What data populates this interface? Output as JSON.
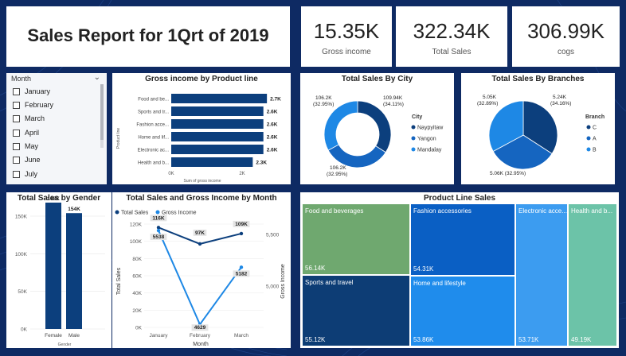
{
  "report": {
    "title": "Sales Report for 1Qrt of 2019"
  },
  "kpis": [
    {
      "value": "15.35K",
      "label": "Gross income"
    },
    {
      "value": "322.34K",
      "label": "Total Sales"
    },
    {
      "value": "306.99K",
      "label": "cogs"
    }
  ],
  "slicer": {
    "title": "Month",
    "items": [
      "January",
      "February",
      "March",
      "April",
      "May",
      "June",
      "July"
    ]
  },
  "gross_by_product": {
    "title": "Gross income by Product line",
    "ylabel": "Product line",
    "xlabel": "Sum of gross income",
    "ticks": [
      "0K",
      "2K"
    ],
    "chart_data": {
      "type": "bar",
      "categories": [
        "Food and be...",
        "Sports and tr...",
        "Fashion acce...",
        "Home and lif...",
        "Electronic ac...",
        "Health and b..."
      ],
      "values": [
        2.7,
        2.6,
        2.6,
        2.6,
        2.6,
        2.3
      ],
      "labels": [
        "2.7K",
        "2.6K",
        "2.6K",
        "2.6K",
        "2.6K",
        "2.3K"
      ],
      "xlim": [
        0,
        2.9
      ]
    }
  },
  "sales_by_city": {
    "title": "Total Sales By City",
    "legend_title": "City",
    "chart_data": {
      "type": "pie",
      "style": "donut",
      "categories": [
        "Naypyitaw",
        "Yangon",
        "Mandalay"
      ],
      "values": [
        109.94,
        106.2,
        106.2
      ],
      "labels": [
        "109.94K\n(34.11%)",
        "106.2K\n(32.95%)",
        "106.2K\n(32.95%)"
      ],
      "colors": [
        "#0c3f7d",
        "#1565c0",
        "#1e88e5"
      ]
    }
  },
  "sales_by_branch": {
    "title": "Total Sales By Branches",
    "legend_title": "Branch",
    "chart_data": {
      "type": "pie",
      "categories": [
        "C",
        "A",
        "B"
      ],
      "values": [
        5.24,
        5.06,
        5.05
      ],
      "labels": [
        "5.24K\n(34.16%)",
        "5.06K (32.95%)",
        "5.05K\n(32.89%)"
      ],
      "colors": [
        "#0c3f7d",
        "#1565c0",
        "#1e88e5"
      ]
    }
  },
  "sales_by_gender": {
    "title": "Total Sales by Gender",
    "xlabel": "Gender",
    "ticks": [
      "0K",
      "50K",
      "100K",
      "150K"
    ],
    "chart_data": {
      "type": "bar",
      "categories": [
        "Female",
        "Male"
      ],
      "values": [
        168,
        154
      ],
      "labels": [
        "168K",
        "154K"
      ],
      "ylim": [
        0,
        180
      ]
    }
  },
  "sales_gross_by_month": {
    "title": "Total Sales and Gross Income by Month",
    "legend": [
      "Total Sales",
      "Gross Income"
    ],
    "xlabel": "Month",
    "ylabel_left": "Total Sales",
    "ylabel_right": "Gross Income",
    "ticks_left": [
      "0K",
      "20K",
      "40K",
      "60K",
      "80K",
      "100K",
      "120K"
    ],
    "ticks_right": [
      "5,000",
      "5,500"
    ],
    "chart_data": {
      "type": "line",
      "categories": [
        "January",
        "February",
        "March"
      ],
      "series": [
        {
          "name": "Total Sales",
          "values": [
            116,
            97,
            109
          ],
          "labels": [
            "116K",
            "97K",
            "109K"
          ],
          "axis": "left"
        },
        {
          "name": "Gross Income",
          "values": [
            5538,
            4629,
            5182
          ],
          "labels": [
            "5538",
            "4629",
            "5182"
          ],
          "axis": "right"
        }
      ],
      "ylim_left": [
        0,
        120
      ],
      "ylim_right": [
        4600,
        5600
      ]
    }
  },
  "product_line_sales": {
    "title": "Product Line Sales",
    "chart_data": {
      "type": "treemap",
      "categories": [
        "Food and beverages",
        "Sports and travel",
        "Fashion accessories",
        "Home and lifestyle",
        "Electronic acce...",
        "Health and b..."
      ],
      "values": [
        56.14,
        55.12,
        54.31,
        53.86,
        53.71,
        49.19
      ],
      "labels": [
        "56.14K",
        "55.12K",
        "54.31K",
        "53.86K",
        "53.71K",
        "49.19K"
      ],
      "colors": [
        "#6fa86f",
        "#0d3d75",
        "#0a5fc4",
        "#1f8cec",
        "#3c9cf0",
        "#6cc3a8"
      ]
    }
  },
  "colors": {
    "dark_blue": "#0c3f7d",
    "mid_blue": "#1565c0",
    "light_blue": "#1e88e5",
    "bg": "#0e2a63"
  }
}
